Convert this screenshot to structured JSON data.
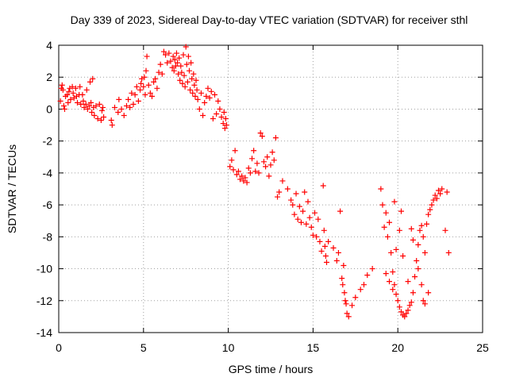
{
  "chart_data": {
    "type": "scatter",
    "title": "Day 339 of 2023, Sidereal Day-to-day VTEC variation (SDTVAR) for receiver sthl",
    "xlabel": "GPS time / hours",
    "ylabel": "SDTVAR / TECUs",
    "xlim": [
      0,
      25
    ],
    "ylim": [
      -14,
      4
    ],
    "x_ticks": [
      0,
      5,
      10,
      15,
      20,
      25
    ],
    "y_ticks": [
      -14,
      -12,
      -10,
      -8,
      -6,
      -4,
      -2,
      0,
      2,
      4
    ],
    "grid": true,
    "marker": "plus",
    "color": "#ff0000",
    "series": [
      {
        "points": [
          [
            0.1,
            0.5
          ],
          [
            0.15,
            1.3
          ],
          [
            0.2,
            1.5
          ],
          [
            0.25,
            1.2
          ],
          [
            0.3,
            0.2
          ],
          [
            0.35,
            0.0
          ],
          [
            0.4,
            0.8
          ],
          [
            0.5,
            0.9
          ],
          [
            0.55,
            0.4
          ],
          [
            0.6,
            1.1
          ],
          [
            0.65,
            1.3
          ],
          [
            0.7,
            0.6
          ],
          [
            0.8,
            1.4
          ],
          [
            0.85,
            1.0
          ],
          [
            0.9,
            0.7
          ],
          [
            1.0,
            1.3
          ],
          [
            1.05,
            0.8
          ],
          [
            1.1,
            0.4
          ],
          [
            1.2,
            0.9
          ],
          [
            1.25,
            1.4
          ],
          [
            1.3,
            0.3
          ],
          [
            1.4,
            0.9
          ],
          [
            1.45,
            0.5
          ],
          [
            1.5,
            0.1
          ],
          [
            1.6,
            0.3
          ],
          [
            1.65,
            1.2
          ],
          [
            1.7,
            0.0
          ],
          [
            1.8,
            0.2
          ],
          [
            1.85,
            1.7
          ],
          [
            1.9,
            0.4
          ],
          [
            1.95,
            -0.2
          ],
          [
            2.0,
            1.9
          ],
          [
            2.05,
            0.1
          ],
          [
            2.1,
            -0.4
          ],
          [
            2.2,
            0.2
          ],
          [
            2.3,
            -0.6
          ],
          [
            2.4,
            0.3
          ],
          [
            2.5,
            -0.7
          ],
          [
            2.55,
            -0.1
          ],
          [
            2.6,
            0.1
          ],
          [
            2.65,
            -0.5
          ],
          [
            3.1,
            -0.7
          ],
          [
            3.15,
            -1.0
          ],
          [
            3.3,
            0.1
          ],
          [
            3.5,
            -0.2
          ],
          [
            3.55,
            0.6
          ],
          [
            3.7,
            0.0
          ],
          [
            3.85,
            -0.4
          ],
          [
            4.0,
            0.2
          ],
          [
            4.1,
            0.6
          ],
          [
            4.2,
            0.1
          ],
          [
            4.3,
            1.0
          ],
          [
            4.4,
            0.3
          ],
          [
            4.5,
            0.9
          ],
          [
            4.6,
            1.4
          ],
          [
            4.7,
            0.5
          ],
          [
            4.8,
            1.2
          ],
          [
            4.85,
            1.6
          ],
          [
            4.9,
            1.9
          ],
          [
            5.0,
            1.4
          ],
          [
            5.05,
            2.0
          ],
          [
            5.1,
            0.9
          ],
          [
            5.15,
            2.4
          ],
          [
            5.2,
            3.3
          ],
          [
            5.3,
            1.5
          ],
          [
            5.4,
            1.0
          ],
          [
            5.5,
            0.8
          ],
          [
            5.6,
            1.7
          ],
          [
            5.7,
            1.9
          ],
          [
            5.8,
            1.3
          ],
          [
            5.9,
            2.3
          ],
          [
            6.0,
            2.8
          ],
          [
            6.1,
            2.2
          ],
          [
            6.2,
            3.6
          ],
          [
            6.3,
            3.4
          ],
          [
            6.4,
            2.9
          ],
          [
            6.5,
            3.5
          ],
          [
            6.6,
            3.0
          ],
          [
            6.7,
            2.6
          ],
          [
            6.75,
            3.3
          ],
          [
            6.8,
            2.4
          ],
          [
            6.85,
            3.1
          ],
          [
            6.9,
            2.7
          ],
          [
            6.95,
            3.5
          ],
          [
            7.0,
            2.9
          ],
          [
            7.05,
            2.2
          ],
          [
            7.1,
            3.2
          ],
          [
            7.15,
            1.8
          ],
          [
            7.2,
            2.7
          ],
          [
            7.25,
            2.3
          ],
          [
            7.3,
            1.6
          ],
          [
            7.35,
            3.4
          ],
          [
            7.4,
            2.1
          ],
          [
            7.45,
            1.4
          ],
          [
            7.5,
            3.9
          ],
          [
            7.55,
            2.8
          ],
          [
            7.6,
            1.7
          ],
          [
            7.65,
            3.3
          ],
          [
            7.7,
            2.4
          ],
          [
            7.75,
            1.2
          ],
          [
            7.8,
            2.9
          ],
          [
            7.85,
            1.9
          ],
          [
            7.9,
            1.0
          ],
          [
            7.95,
            2.2
          ],
          [
            8.0,
            1.5
          ],
          [
            8.05,
            0.8
          ],
          [
            8.1,
            1.8
          ],
          [
            8.15,
            1.2
          ],
          [
            8.2,
            0.6
          ],
          [
            8.3,
            0.0
          ],
          [
            8.4,
            1.0
          ],
          [
            8.5,
            -0.4
          ],
          [
            8.6,
            0.4
          ],
          [
            8.7,
            0.8
          ],
          [
            8.8,
            1.3
          ],
          [
            8.9,
            0.7
          ],
          [
            9.0,
            1.1
          ],
          [
            9.1,
            -0.6
          ],
          [
            9.2,
            0.9
          ],
          [
            9.3,
            -0.3
          ],
          [
            9.4,
            0.5
          ],
          [
            9.5,
            0.0
          ],
          [
            9.6,
            -0.5
          ],
          [
            9.7,
            -0.9
          ],
          [
            9.75,
            -0.2
          ],
          [
            9.8,
            -1.2
          ],
          [
            9.85,
            -0.6
          ],
          [
            9.9,
            -1.0
          ],
          [
            10.1,
            -3.6
          ],
          [
            10.2,
            -3.2
          ],
          [
            10.3,
            -3.8
          ],
          [
            10.4,
            -2.6
          ],
          [
            10.5,
            -4.1
          ],
          [
            10.6,
            -3.9
          ],
          [
            10.7,
            -4.4
          ],
          [
            10.8,
            -4.2
          ],
          [
            10.9,
            -4.5
          ],
          [
            11.0,
            -4.3
          ],
          [
            11.1,
            -4.6
          ],
          [
            11.2,
            -3.7
          ],
          [
            11.3,
            -4.0
          ],
          [
            11.4,
            -3.1
          ],
          [
            11.5,
            -2.6
          ],
          [
            11.6,
            -3.9
          ],
          [
            11.7,
            -3.4
          ],
          [
            11.8,
            -4.0
          ],
          [
            11.9,
            -1.5
          ],
          [
            12.0,
            -1.7
          ],
          [
            12.1,
            -3.3
          ],
          [
            12.2,
            -3.6
          ],
          [
            12.3,
            -3.0
          ],
          [
            12.4,
            -4.2
          ],
          [
            12.5,
            -3.5
          ],
          [
            12.6,
            -2.7
          ],
          [
            12.7,
            -3.2
          ],
          [
            12.8,
            -1.8
          ],
          [
            12.9,
            -5.5
          ],
          [
            13.0,
            -5.2
          ],
          [
            13.2,
            -4.5
          ],
          [
            13.5,
            -5.0
          ],
          [
            13.7,
            -5.7
          ],
          [
            13.8,
            -6.0
          ],
          [
            13.9,
            -6.6
          ],
          [
            14.0,
            -5.3
          ],
          [
            14.1,
            -6.9
          ],
          [
            14.2,
            -6.1
          ],
          [
            14.3,
            -7.1
          ],
          [
            14.4,
            -6.4
          ],
          [
            14.5,
            -5.2
          ],
          [
            14.6,
            -7.2
          ],
          [
            14.7,
            -5.8
          ],
          [
            14.8,
            -6.8
          ],
          [
            14.9,
            -7.4
          ],
          [
            15.0,
            -7.9
          ],
          [
            15.1,
            -6.5
          ],
          [
            15.2,
            -8.0
          ],
          [
            15.3,
            -6.9
          ],
          [
            15.4,
            -8.3
          ],
          [
            15.5,
            -8.9
          ],
          [
            15.6,
            -4.8
          ],
          [
            15.65,
            -7.6
          ],
          [
            15.7,
            -8.6
          ],
          [
            15.75,
            -9.2
          ],
          [
            15.8,
            -9.6
          ],
          [
            15.9,
            -8.3
          ],
          [
            16.2,
            -8.7
          ],
          [
            16.4,
            -9.5
          ],
          [
            16.5,
            -9.0
          ],
          [
            16.6,
            -6.4
          ],
          [
            16.7,
            -10.6
          ],
          [
            16.75,
            -11.0
          ],
          [
            16.8,
            -9.8
          ],
          [
            16.85,
            -11.5
          ],
          [
            16.9,
            -12.0
          ],
          [
            16.95,
            -12.2
          ],
          [
            17.0,
            -12.8
          ],
          [
            17.1,
            -13.0
          ],
          [
            17.3,
            -12.3
          ],
          [
            17.5,
            -11.8
          ],
          [
            17.8,
            -11.3
          ],
          [
            18.0,
            -11.0
          ],
          [
            18.2,
            -10.4
          ],
          [
            18.5,
            -10.0
          ],
          [
            19.0,
            -5.0
          ],
          [
            19.1,
            -6.0
          ],
          [
            19.2,
            -7.4
          ],
          [
            19.3,
            -6.5
          ],
          [
            19.4,
            -8.0
          ],
          [
            19.5,
            -7.1
          ],
          [
            19.6,
            -9.0
          ],
          [
            19.7,
            -10.2
          ],
          [
            19.8,
            -11.0
          ],
          [
            19.9,
            -11.6
          ],
          [
            20.0,
            -12.0
          ],
          [
            20.1,
            -12.4
          ],
          [
            20.2,
            -12.7
          ],
          [
            20.3,
            -12.9
          ],
          [
            20.4,
            -13.0
          ],
          [
            20.5,
            -12.8
          ],
          [
            20.6,
            -12.6
          ],
          [
            20.7,
            -12.3
          ],
          [
            20.8,
            -12.1
          ],
          [
            20.9,
            -11.5
          ],
          [
            21.0,
            -10.5
          ],
          [
            21.1,
            -9.5
          ],
          [
            21.2,
            -8.5
          ],
          [
            21.3,
            -7.6
          ],
          [
            21.4,
            -7.3
          ],
          [
            21.5,
            -8.0
          ],
          [
            21.6,
            -9.0
          ],
          [
            21.7,
            -7.2
          ],
          [
            21.8,
            -6.6
          ],
          [
            21.9,
            -6.3
          ],
          [
            22.0,
            -6.0
          ],
          [
            22.1,
            -5.7
          ],
          [
            22.2,
            -5.4
          ],
          [
            22.3,
            -5.6
          ],
          [
            22.4,
            -5.1
          ],
          [
            22.5,
            -5.3
          ],
          [
            22.6,
            -5.0
          ],
          [
            22.8,
            -7.6
          ],
          [
            22.9,
            -5.2
          ],
          [
            23.0,
            -9.0
          ],
          [
            20.8,
            -7.5
          ],
          [
            20.9,
            -8.2
          ],
          [
            21.2,
            -10.0
          ],
          [
            21.4,
            -11.0
          ],
          [
            21.5,
            -12.0
          ],
          [
            21.6,
            -12.2
          ],
          [
            21.8,
            -11.5
          ],
          [
            19.3,
            -10.3
          ],
          [
            19.5,
            -10.8
          ],
          [
            19.7,
            -11.3
          ],
          [
            19.9,
            -8.8
          ],
          [
            20.1,
            -7.6
          ],
          [
            20.3,
            -9.2
          ],
          [
            20.6,
            -10.8
          ],
          [
            20.2,
            -6.4
          ],
          [
            19.8,
            -5.8
          ]
        ]
      }
    ]
  }
}
